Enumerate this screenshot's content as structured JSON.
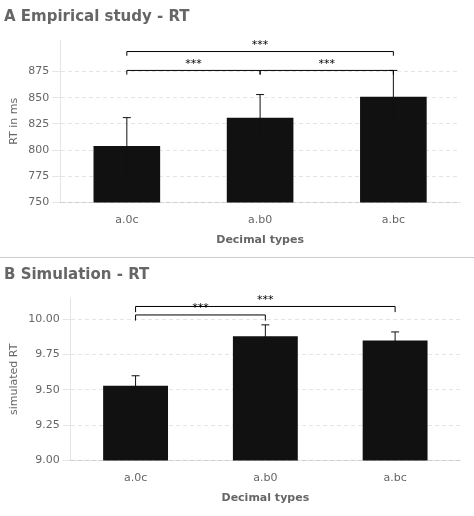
{
  "chart_data": [
    {
      "type": "bar",
      "title": "A Empirical study - RT",
      "ylabel": "RT in ms",
      "xlabel": "Decimal types",
      "categories": [
        "a.0c",
        "a.b0",
        "a.bc"
      ],
      "values": [
        804,
        831,
        851
      ],
      "errors": [
        27,
        22,
        25
      ],
      "color": "#111111",
      "ylim": [
        750,
        905
      ],
      "yticks": [
        750,
        775,
        800,
        825,
        850,
        875
      ],
      "grid": true,
      "annotations": [
        {
          "from": "a.0c",
          "to": "a.b0",
          "y": 876,
          "drop": 4,
          "label": "***"
        },
        {
          "from": "a.0c",
          "to": "a.bc",
          "y": 894,
          "drop": 4,
          "label": "***"
        },
        {
          "from": "a.b0",
          "to": "a.bc",
          "y": 876,
          "drop": 4,
          "label": "***"
        }
      ]
    },
    {
      "type": "bar",
      "title": "B Simulation - RT",
      "ylabel": "simulated RT",
      "xlabel": "Decimal types",
      "categories": [
        "a.0c",
        "a.b0",
        "a.bc"
      ],
      "values": [
        9.53,
        9.88,
        9.85
      ],
      "errors": [
        0.07,
        0.08,
        0.06
      ],
      "color": "#111111",
      "ylim": [
        9.0,
        10.15
      ],
      "yticks": [
        {
          "value": 9.0,
          "label": "9.00"
        },
        {
          "value": 9.25,
          "label": "9.25"
        },
        {
          "value": 9.5,
          "label": "9.50"
        },
        {
          "value": 9.75,
          "label": "9.75"
        },
        {
          "value": 10.0,
          "label": "10.00"
        }
      ],
      "grid": true,
      "annotations": [
        {
          "from": "a.0c",
          "to": "a.b0",
          "y": 10.03,
          "drop": 0.04,
          "label": "***"
        },
        {
          "from": "a.0c",
          "to": "a.bc",
          "y": 10.09,
          "drop": 0.04,
          "label": "***"
        }
      ]
    }
  ]
}
